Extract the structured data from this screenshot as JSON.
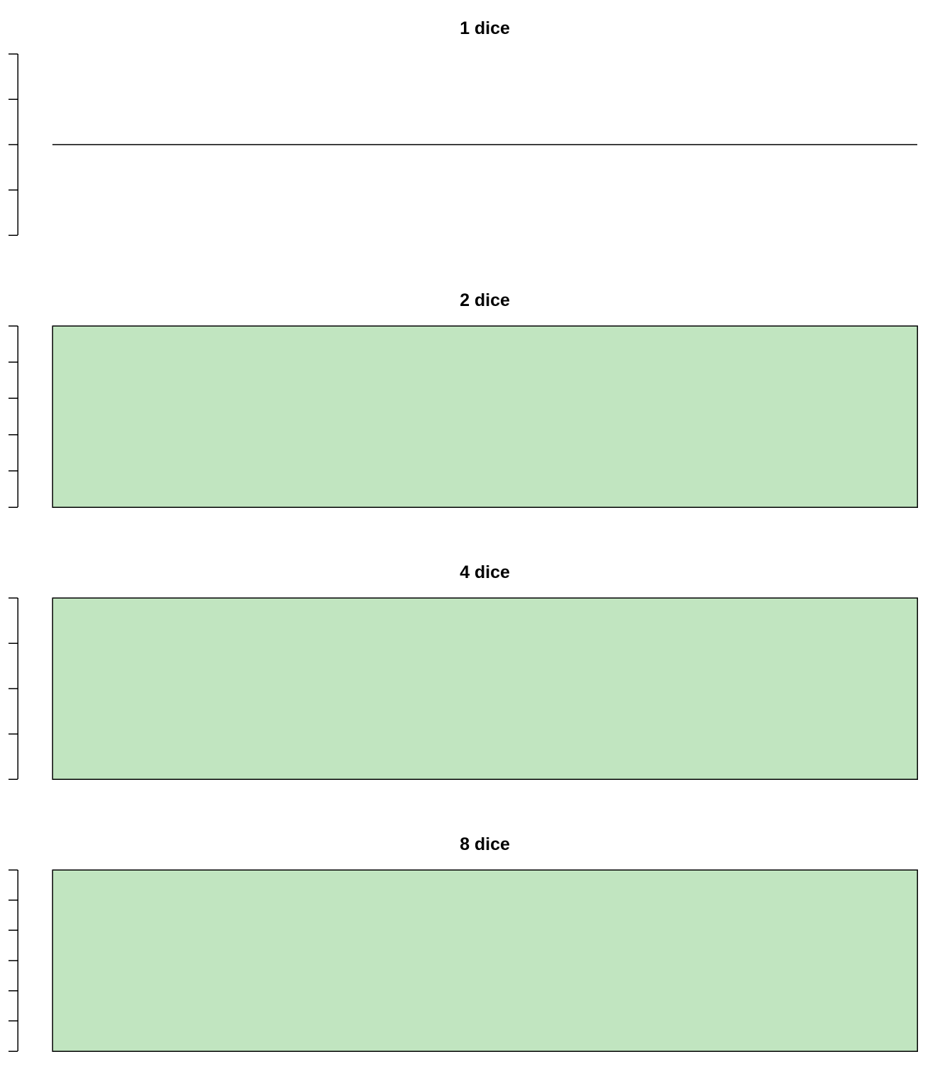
{
  "chart_data": [
    {
      "type": "bar",
      "title": "1 dice",
      "xlabel": "",
      "ylabel": "",
      "ylim": [
        -1,
        1
      ],
      "y_ticks": 5,
      "categories": [
        ""
      ],
      "values": [
        0
      ],
      "bar_color": "#c1e5c0",
      "edge_color": "#000000"
    },
    {
      "type": "bar",
      "title": "2 dice",
      "xlabel": "",
      "ylabel": "",
      "ylim": [
        0,
        1
      ],
      "y_ticks": 6,
      "categories": [
        ""
      ],
      "values": [
        1
      ],
      "bar_color": "#c1e5c0",
      "edge_color": "#000000"
    },
    {
      "type": "bar",
      "title": "4 dice",
      "xlabel": "",
      "ylabel": "",
      "ylim": [
        0,
        1
      ],
      "y_ticks": 5,
      "categories": [
        ""
      ],
      "values": [
        1
      ],
      "bar_color": "#c1e5c0",
      "edge_color": "#000000"
    },
    {
      "type": "bar",
      "title": "8 dice",
      "xlabel": "",
      "ylabel": "",
      "ylim": [
        0,
        1
      ],
      "y_ticks": 7,
      "categories": [
        ""
      ],
      "values": [
        1
      ],
      "bar_color": "#c1e5c0",
      "edge_color": "#000000"
    }
  ]
}
